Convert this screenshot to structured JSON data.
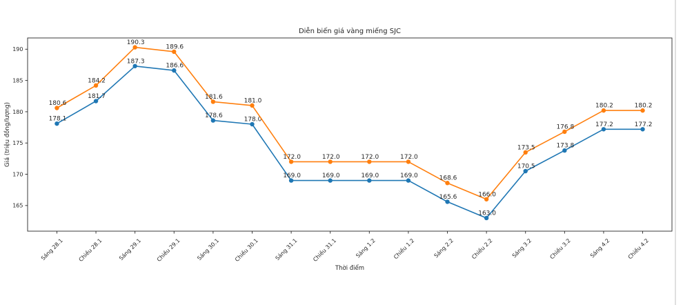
{
  "page": {
    "background_color": "#ffffff",
    "right_edge_line_color": "#d6d6d6"
  },
  "chart_data": {
    "type": "line",
    "title": "Diễn biến giá vàng miếng SJC",
    "xlabel": "Thời điểm",
    "ylabel": "Giá (triệu đồng/lượng)",
    "categories": [
      "Sáng 28.1",
      "Chiều 28.1",
      "Sáng 29.1",
      "Chiều 29.1",
      "Sáng 30.1",
      "Chiều 30.1",
      "Sáng 31.1",
      "Chiều 31.1",
      "Sáng 1.2",
      "Chiều 1.2",
      "Sáng 2.2",
      "Chiều 2.2",
      "Sáng 3.2",
      "Chiều 3.2",
      "Sáng 4.2",
      "Chiều 4.2"
    ],
    "series": [
      {
        "name": "blue-series",
        "color": "#1f77b4",
        "values": [
          178.1,
          181.7,
          187.3,
          186.6,
          178.6,
          178.0,
          169.0,
          169.0,
          169.0,
          169.0,
          165.6,
          163.0,
          170.5,
          173.8,
          177.2,
          177.2
        ]
      },
      {
        "name": "orange-series",
        "color": "#ff7f0e",
        "values": [
          180.6,
          184.2,
          190.3,
          189.6,
          181.6,
          181.0,
          172.0,
          172.0,
          172.0,
          172.0,
          168.6,
          166.0,
          173.5,
          176.8,
          180.2,
          180.2
        ]
      }
    ],
    "yticks": [
      165,
      170,
      175,
      180,
      185,
      190
    ],
    "ylim": [
      160.9,
      191.8
    ],
    "grid": false,
    "legend_position": "none",
    "data_labels": true,
    "label_decimals": 1,
    "axis_color": "#262626",
    "text_color": "#262626"
  }
}
